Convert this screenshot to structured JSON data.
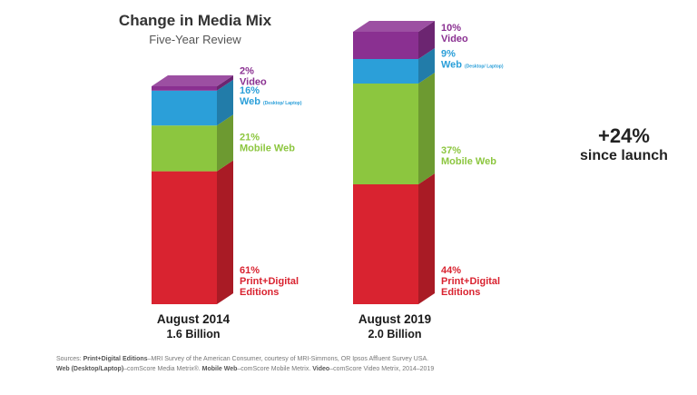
{
  "chart_data": {
    "type": "bar",
    "stacked": true,
    "title": "Change in Media Mix",
    "subtitle": "Five-Year Review",
    "categories": [
      {
        "label": "August 2014",
        "total_label": "1.6 Billion",
        "total": 1.6
      },
      {
        "label": "August 2019",
        "total_label": "2.0 Billion",
        "total": 2.0
      }
    ],
    "series": [
      {
        "name": "Print+Digital Editions",
        "line1": "Print+Digital",
        "line2": "Editions",
        "color": "#d92330",
        "values": [
          61,
          44
        ],
        "labels": [
          "61%",
          "44%"
        ]
      },
      {
        "name": "Mobile Web",
        "line1": "Mobile Web",
        "line2": "",
        "color": "#8cc63f",
        "values": [
          21,
          37
        ],
        "labels": [
          "21%",
          "37%"
        ]
      },
      {
        "name": "Web (Desktop/ Laptop)",
        "line1": "Web",
        "sub": "(Desktop/ Laptop)",
        "line2": "",
        "color": "#2b9fd9",
        "values": [
          16,
          9
        ],
        "labels": [
          "16%",
          "9%"
        ]
      },
      {
        "name": "Video",
        "line1": "Video",
        "line2": "",
        "color": "#8a3091",
        "values": [
          2,
          10
        ],
        "labels": [
          "2%",
          "10%"
        ]
      }
    ]
  },
  "callout": {
    "big": "+24%",
    "small": "since launch"
  },
  "sources": {
    "line1_prefix": "Sources: ",
    "line1_bold": "Print+Digital Editions",
    "line1_rest": "–MRI Survey of the American Consumer, courtesy of MRI-Simmons, OR Ipsos Affluent Survey USA.",
    "line2_bold1": "Web (Desktop/Laptop)",
    "line2_rest1": "–comScore Media Metrix®. ",
    "line2_bold2": "Mobile Web",
    "line2_rest2": "–comScore Mobile Metrix. ",
    "line2_bold3": "Video",
    "line2_rest3": "–comScore Video Metrix, 2014–2019"
  }
}
